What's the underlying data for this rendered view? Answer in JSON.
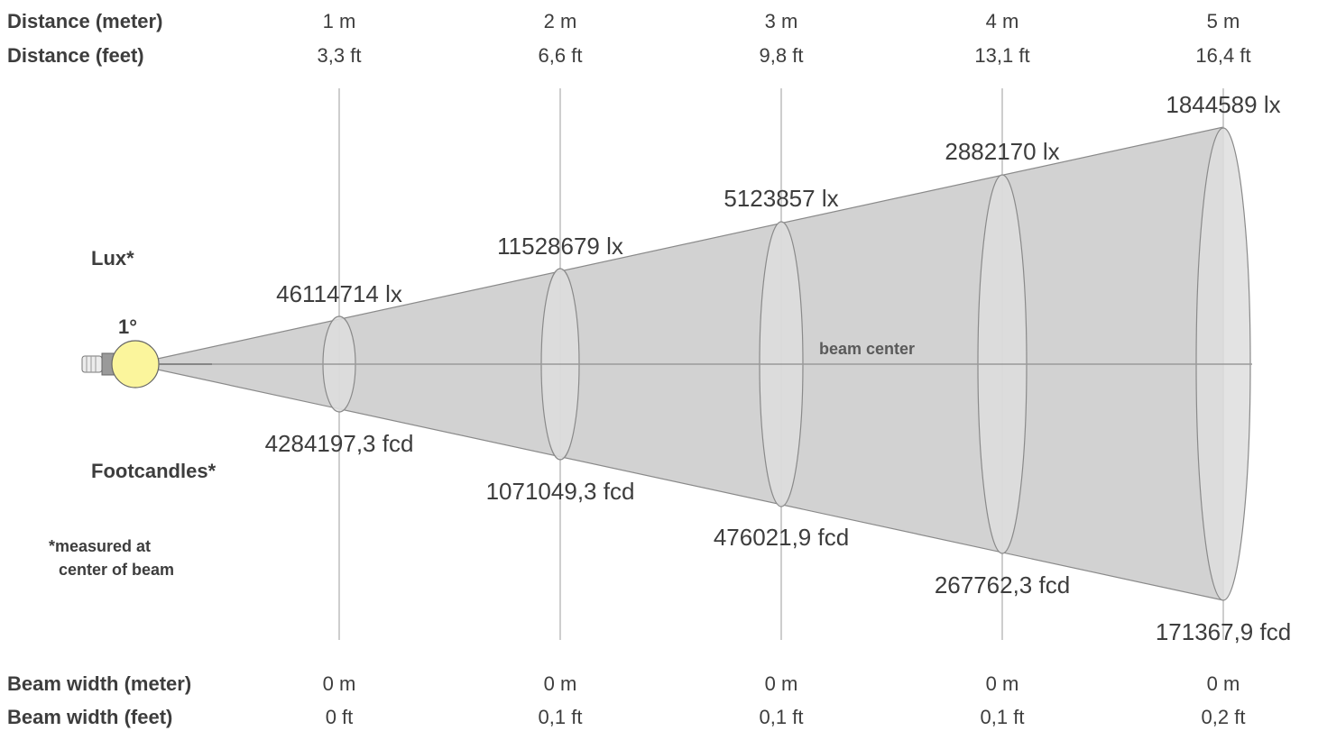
{
  "header": {
    "distance_meter_label": "Distance (meter)",
    "distance_feet_label": "Distance (feet)"
  },
  "footer": {
    "beam_width_meter_label": "Beam width (meter)",
    "beam_width_feet_label": "Beam width (feet)"
  },
  "side": {
    "lux_label": "Lux*",
    "footcandles_label": "Footcandles*",
    "note_line1": "*measured at",
    "note_line2": "center of beam",
    "beam_angle": "1°",
    "beam_center_label": "beam center"
  },
  "columns": [
    {
      "distance_m": "1 m",
      "distance_ft": "3,3 ft",
      "lux": "46114714 lx",
      "fcd": "4284197,3 fcd",
      "width_m": "0 m",
      "width_ft": "0 ft"
    },
    {
      "distance_m": "2 m",
      "distance_ft": "6,6 ft",
      "lux": "11528679 lx",
      "fcd": "1071049,3 fcd",
      "width_m": "0 m",
      "width_ft": "0,1 ft"
    },
    {
      "distance_m": "3 m",
      "distance_ft": "9,8 ft",
      "lux": "5123857 lx",
      "fcd": "476021,9 fcd",
      "width_m": "0 m",
      "width_ft": "0,1 ft"
    },
    {
      "distance_m": "4 m",
      "distance_ft": "13,1 ft",
      "lux": "2882170 lx",
      "fcd": "267762,3 fcd",
      "width_m": "0 m",
      "width_ft": "0,1 ft"
    },
    {
      "distance_m": "5 m",
      "distance_ft": "16,4 ft",
      "lux": "1844589 lx",
      "fcd": "171367,9 fcd",
      "width_m": "0 m",
      "width_ft": "0,2 ft"
    }
  ],
  "colors": {
    "beam_fill": "#d2d2d2",
    "ellipse_fill": "#dedede",
    "line": "#8a8a8a",
    "bulb": "#fbf59c"
  }
}
